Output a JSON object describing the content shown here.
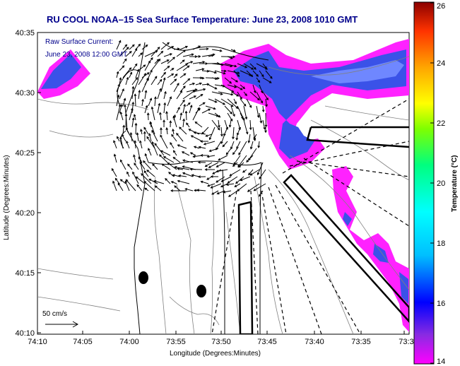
{
  "title": "RU COOL   NOAA–15  Sea Surface Temperature:  June 23, 2008 1010 GMT",
  "legend": {
    "line1": "Raw Surface Current:",
    "line2": "June 23, 2008 12:00 GMT",
    "scale_label": "50 cm/s"
  },
  "axes": {
    "xlabel": "Longitude (Degrees:Minutes)",
    "ylabel": "Latitude (Degrees:Minutes)",
    "xticks": [
      "74:10",
      "74:05",
      "74:00",
      "73:55",
      "73:50",
      "73:45",
      "73:40",
      "73:35",
      "73:3"
    ],
    "yticks": [
      "40:35",
      "40:30",
      "40:25",
      "40:20",
      "40:15",
      "40:10"
    ]
  },
  "colorbar": {
    "label": "Temperature (°C)",
    "ticks": [
      "26",
      "24",
      "22",
      "20",
      "18",
      "16",
      "14"
    ],
    "min": 14,
    "max": 26,
    "colors": [
      "#ff00ff",
      "#8a2be2",
      "#0000ff",
      "#00bfff",
      "#00ffff",
      "#00ff7f",
      "#7fff00",
      "#ffff00",
      "#ffa500",
      "#ff4500",
      "#8b0000"
    ]
  },
  "map_data": {
    "description_colors": {
      "sst_patch": "#3a52e8",
      "sst_edge": "#ff22ff",
      "land_outline": "#000000",
      "bathymetry": "#808080"
    }
  }
}
